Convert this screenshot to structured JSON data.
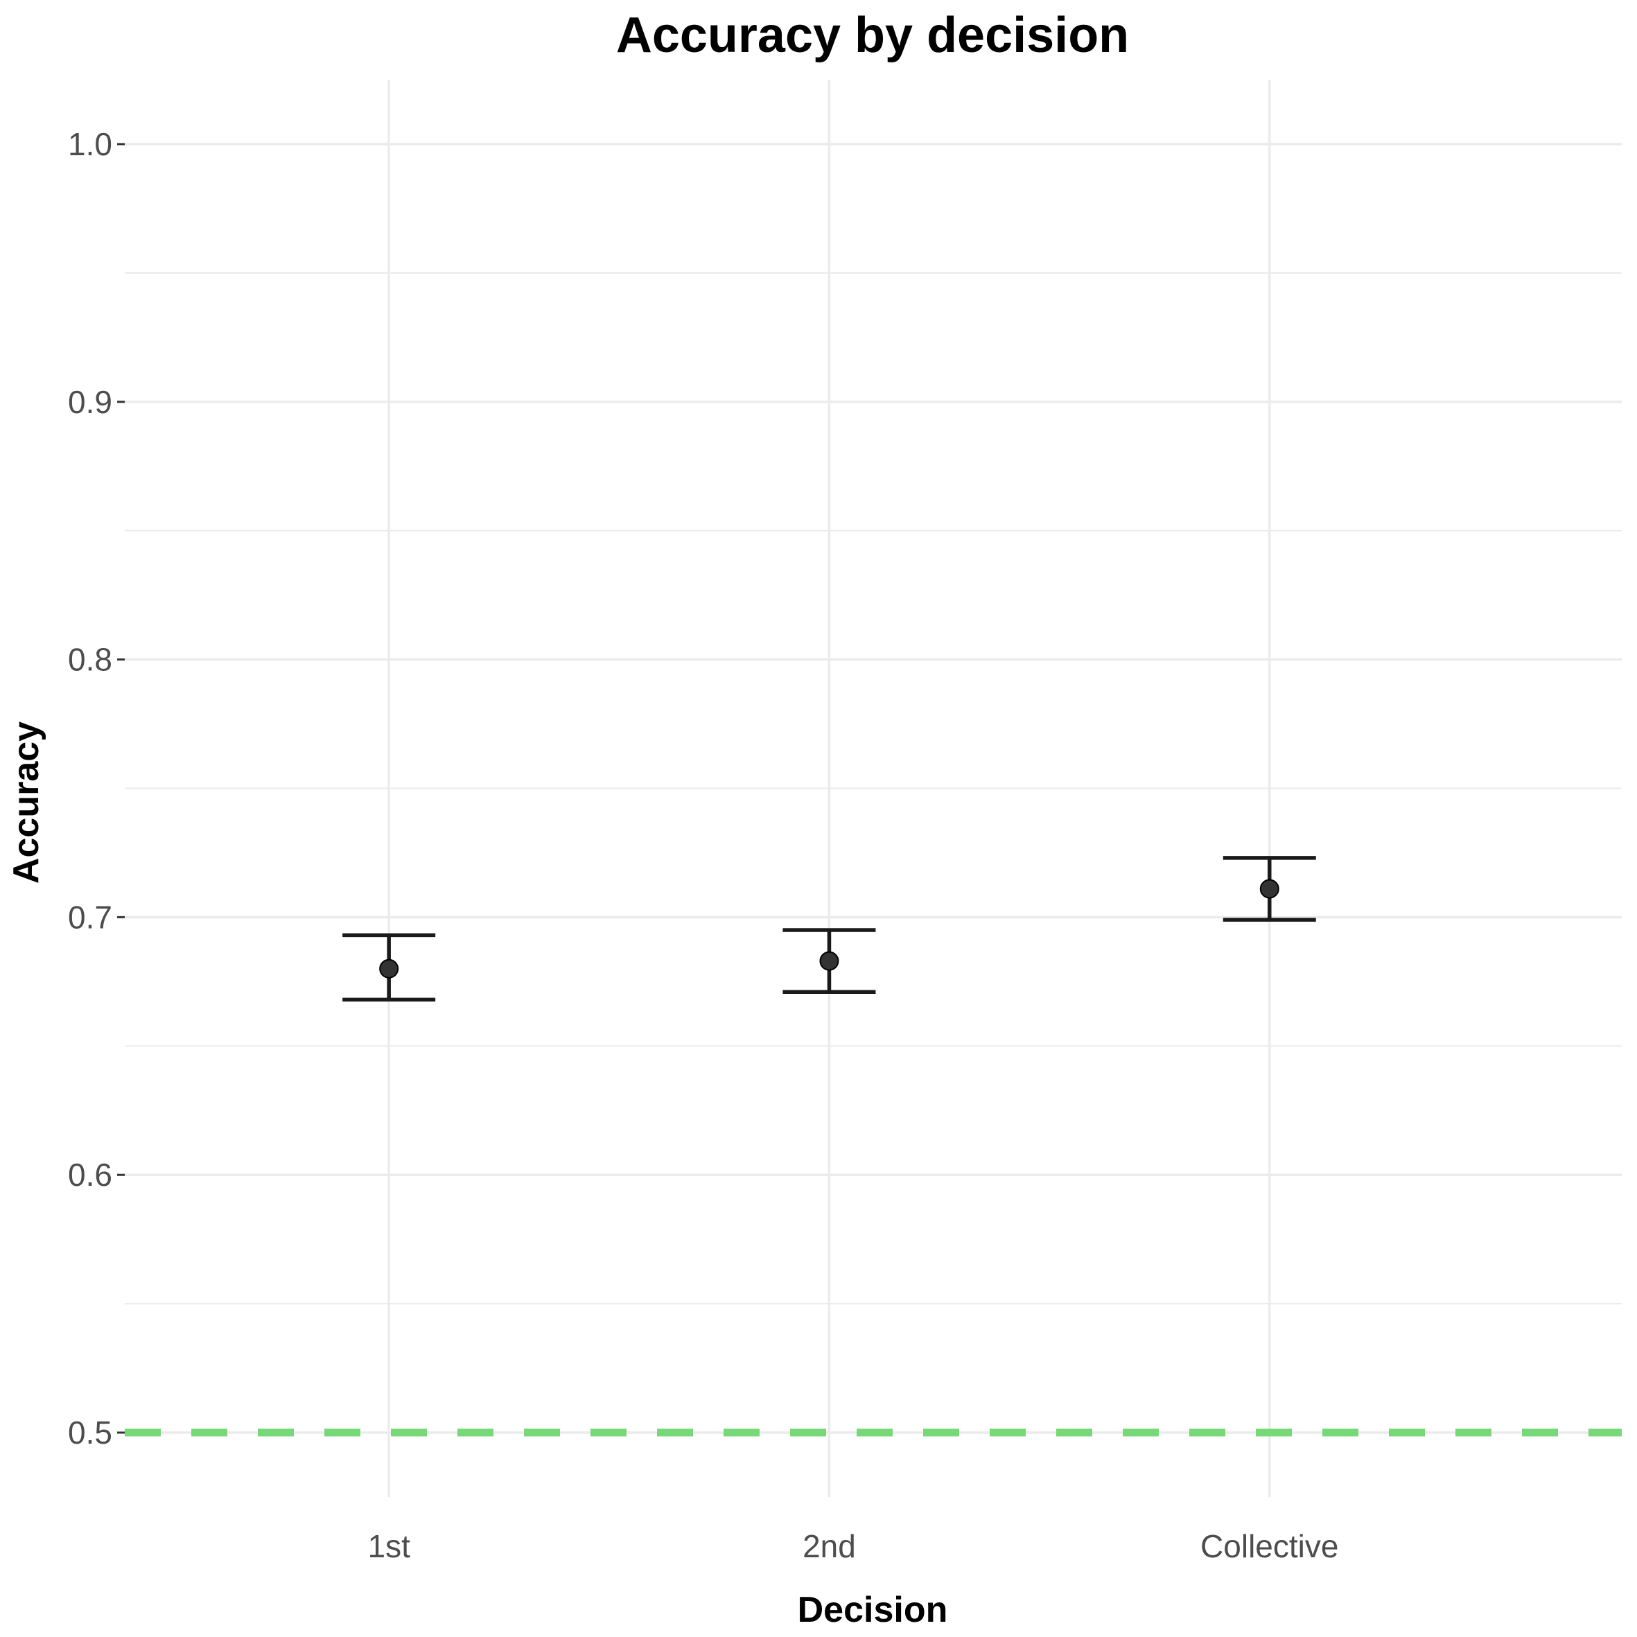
{
  "chart_data": {
    "type": "scatter",
    "title": "Accuracy by decision",
    "xlabel": "Decision",
    "ylabel": "Accuracy",
    "categories": [
      "1st",
      "2nd",
      "Collective"
    ],
    "values": [
      0.68,
      0.683,
      0.711
    ],
    "error_bars": {
      "lower": [
        0.668,
        0.671,
        0.699
      ],
      "upper": [
        0.693,
        0.695,
        0.723
      ]
    },
    "ylim": [
      0.475,
      1.025
    ],
    "y_ticks": [
      0.5,
      0.6,
      0.7,
      0.8,
      0.9,
      1.0
    ],
    "y_tick_labels": [
      "0.5",
      "0.6",
      "0.7",
      "0.8",
      "0.9",
      "1.0"
    ],
    "y_minor_ticks": [
      0.55,
      0.65,
      0.75,
      0.85,
      0.95
    ],
    "reference_line": {
      "y": 0.5,
      "style": "dashed",
      "color": "#77d878"
    },
    "grid": true,
    "legend": "none",
    "colors": {
      "point": "#333333",
      "errorbar": "#1a1a1a",
      "grid": "#ebebeb"
    }
  }
}
